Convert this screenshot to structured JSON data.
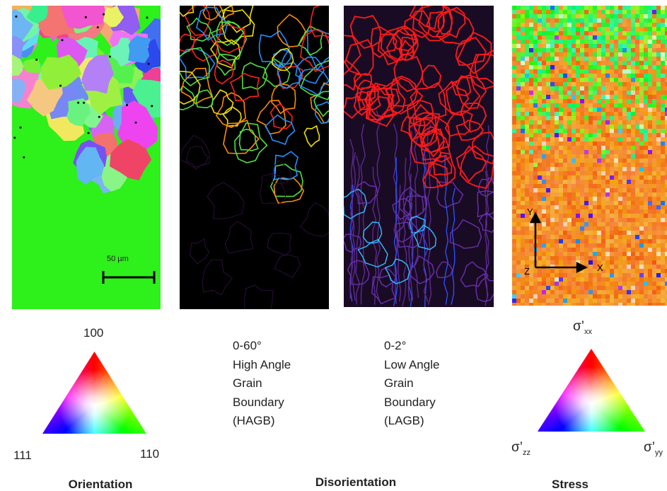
{
  "orientation": {
    "scale_bar": "50 µm",
    "triangle": {
      "top": "100",
      "left": "111",
      "right": "110"
    },
    "caption": "Orientation"
  },
  "hagb": {
    "lines": [
      "0-60°",
      "High Angle",
      "Grain",
      "Boundary",
      "(HAGB)"
    ]
  },
  "lagb": {
    "lines": [
      "0-2°",
      "Low Angle",
      "Grain",
      "Boundary",
      "(LAGB)"
    ]
  },
  "disorientation_caption": "Disorientation",
  "stress": {
    "axes": {
      "y": "Y",
      "z": "Z",
      "x": "X"
    },
    "triangle": {
      "top": {
        "symbol": "σ’",
        "sub": "xx"
      },
      "left": {
        "symbol": "σ’",
        "sub": "zz"
      },
      "right": {
        "symbol": "σ’",
        "sub": "yy"
      }
    },
    "caption": "Stress"
  }
}
